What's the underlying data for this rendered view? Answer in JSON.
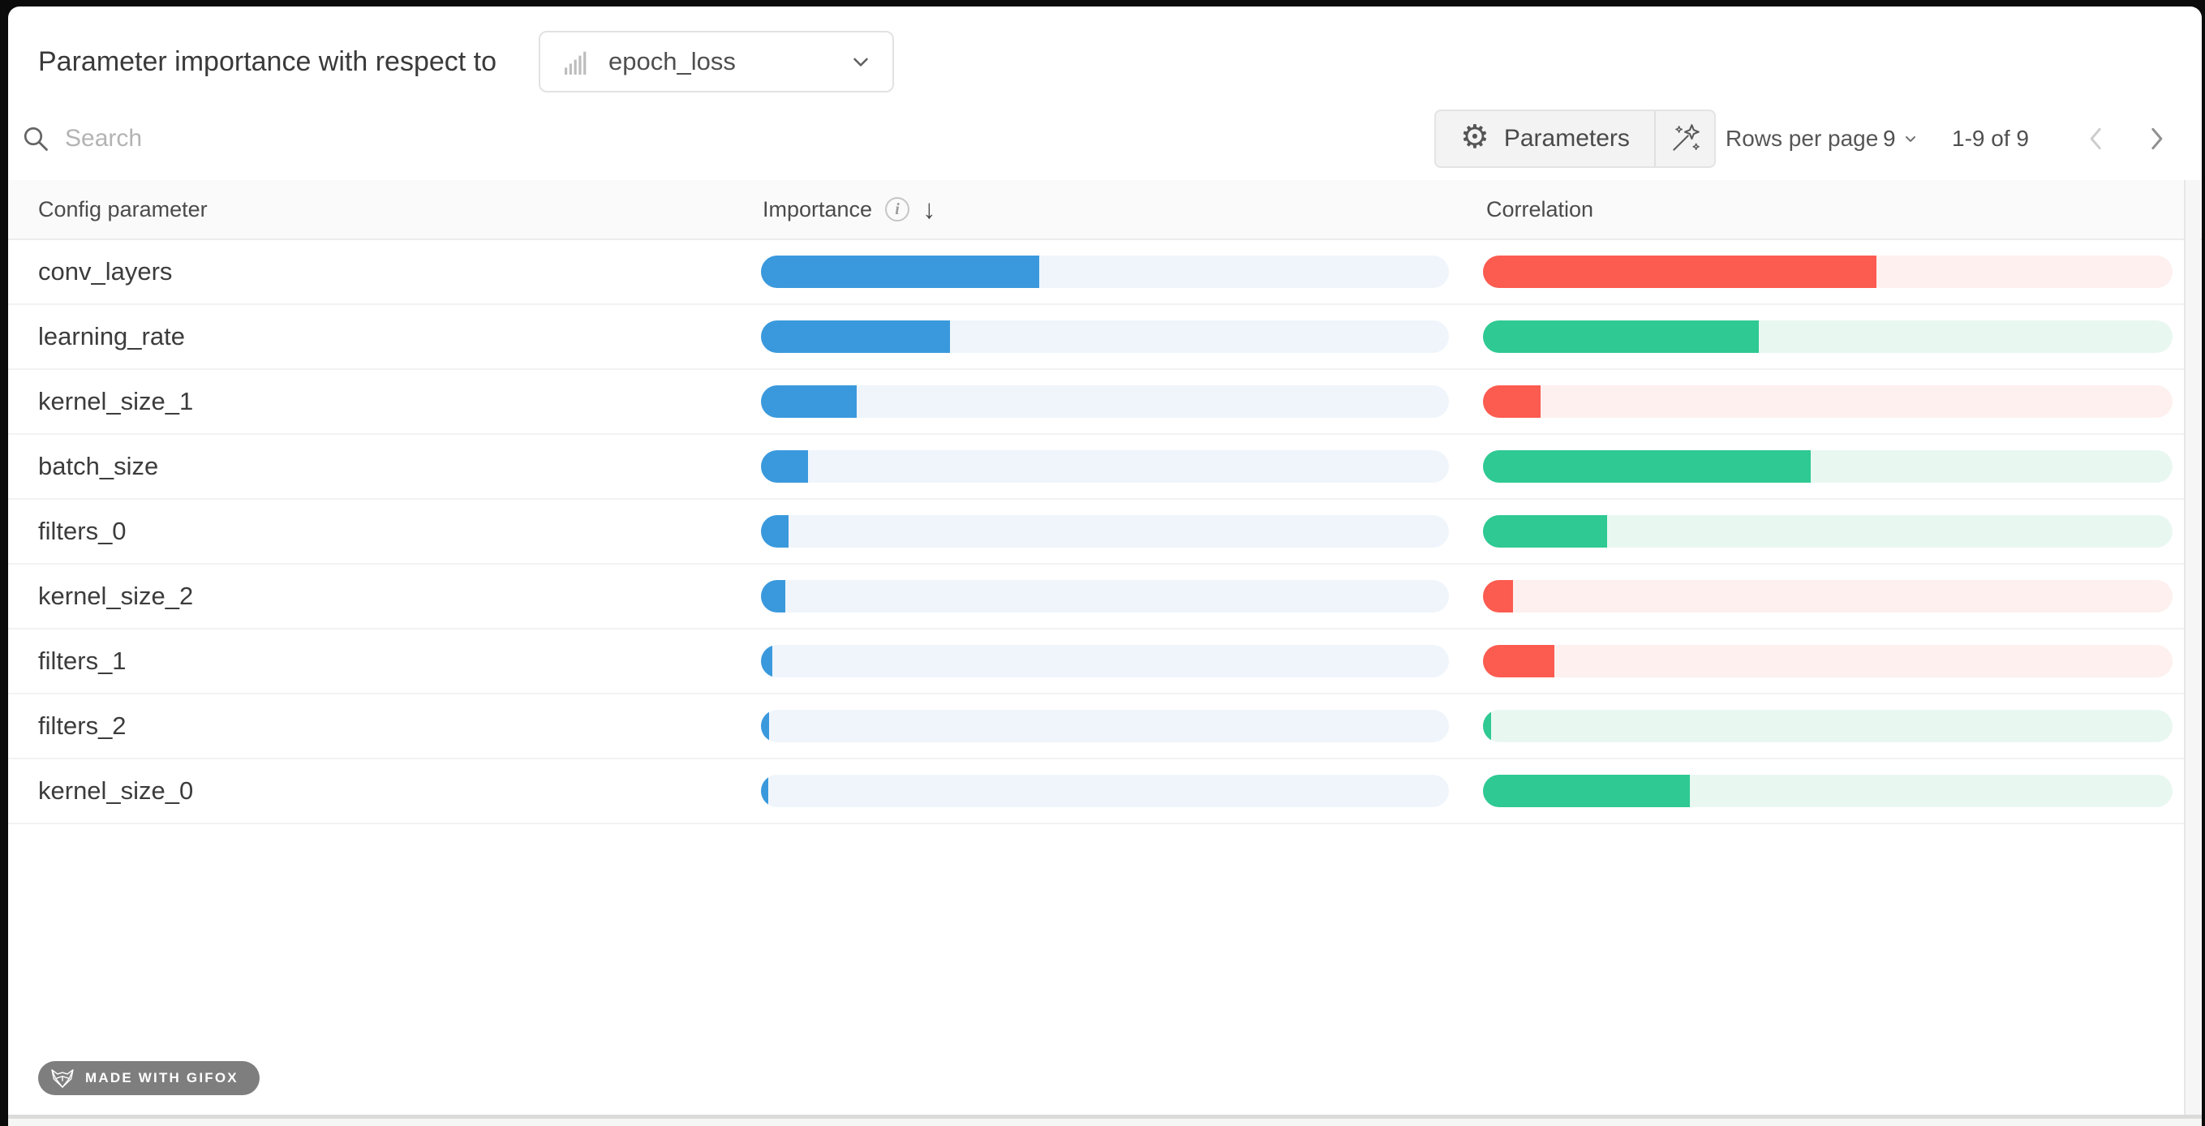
{
  "header": {
    "title": "Parameter importance with respect to",
    "metric_dropdown": {
      "value": "epoch_loss"
    }
  },
  "toolbar": {
    "search_placeholder": "Search",
    "parameters_label": "Parameters",
    "rows_per_page_label": "Rows per page",
    "rows_per_page_value": "9",
    "range_text": "1-9 of 9"
  },
  "table": {
    "columns": {
      "parameter": "Config parameter",
      "importance": "Importance",
      "correlation": "Correlation"
    },
    "sort": {
      "column": "Importance",
      "direction": "descending"
    },
    "rows": [
      {
        "name": "conv_layers",
        "importance": 0.405,
        "correlation": 0.57,
        "direction": "negative"
      },
      {
        "name": "learning_rate",
        "importance": 0.275,
        "correlation": 0.4,
        "direction": "positive"
      },
      {
        "name": "kernel_size_1",
        "importance": 0.139,
        "correlation": 0.083,
        "direction": "negative"
      },
      {
        "name": "batch_size",
        "importance": 0.068,
        "correlation": 0.475,
        "direction": "positive"
      },
      {
        "name": "filters_0",
        "importance": 0.04,
        "correlation": 0.18,
        "direction": "positive"
      },
      {
        "name": "kernel_size_2",
        "importance": 0.035,
        "correlation": 0.044,
        "direction": "negative"
      },
      {
        "name": "filters_1",
        "importance": 0.016,
        "correlation": 0.104,
        "direction": "negative"
      },
      {
        "name": "filters_2",
        "importance": 0.012,
        "correlation": 0.012,
        "direction": "positive"
      },
      {
        "name": "kernel_size_0",
        "importance": 0.009,
        "correlation": 0.3,
        "direction": "positive"
      }
    ]
  },
  "colors": {
    "importance_fill": "#3a99dc",
    "importance_track": "#eff5fb",
    "positive_fill": "#2fc993",
    "positive_track": "#e9f7f1",
    "negative_fill": "#fc5b50",
    "negative_track": "#fdf0ee"
  },
  "icons": {
    "dropdown_icon": "bar-chart-icon",
    "search": "search-icon",
    "parameters": "gear-icon",
    "wand": "magic-wand-icon",
    "importance_info": "info-icon",
    "sort": "arrow-down-icon",
    "badge": "fox-icon"
  },
  "badge": {
    "text": "MADE WITH GIFOX"
  }
}
